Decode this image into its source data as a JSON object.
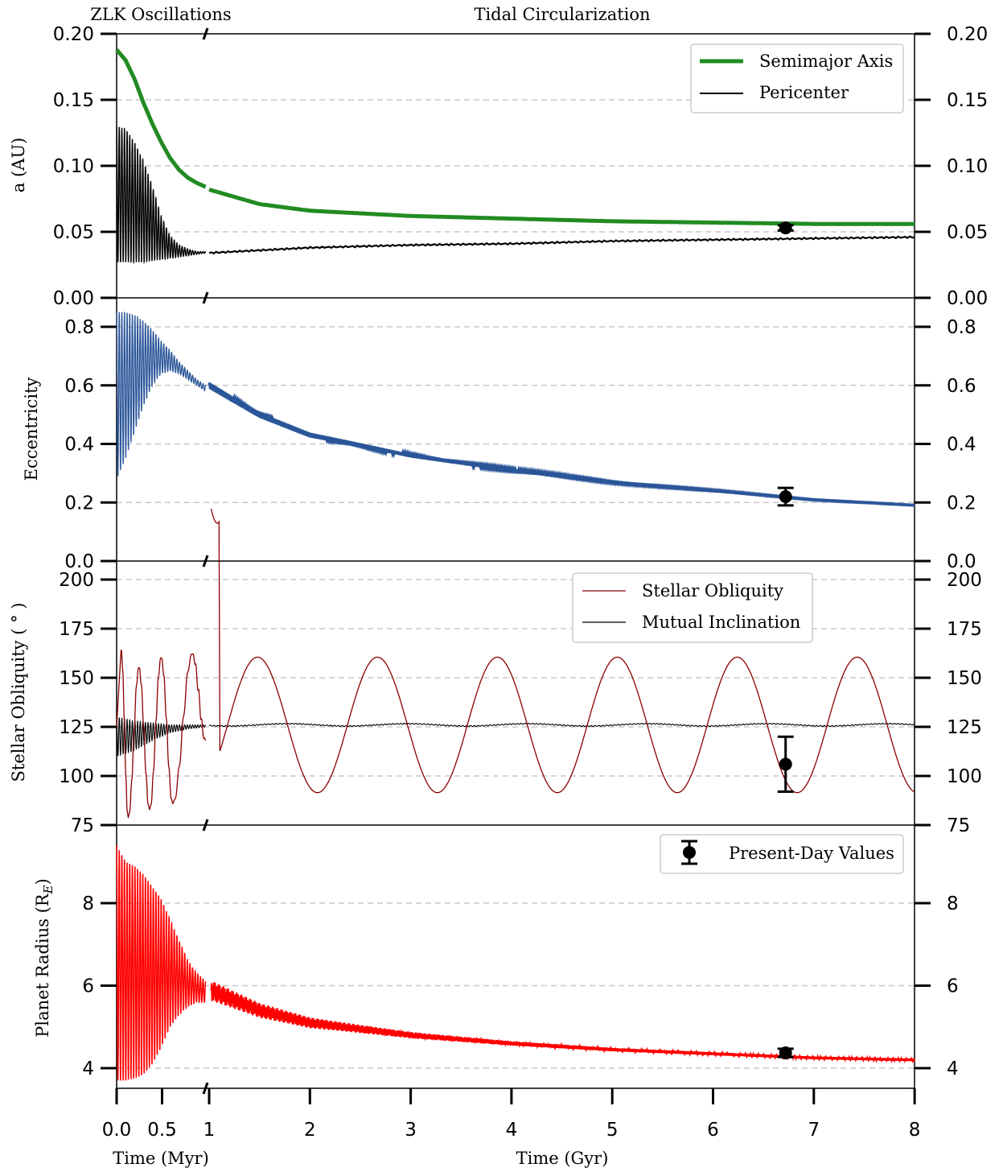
{
  "header": {
    "left_label": "ZLK Oscillations",
    "right_label": "Tidal Circularization"
  },
  "x_axis": {
    "left_label": "Time (Myr)",
    "right_label": "Time (Gyr)",
    "left_ticks": [
      "0.0",
      "0.5",
      "1"
    ],
    "right_ticks": [
      "2",
      "3",
      "4",
      "5",
      "6",
      "7",
      "8"
    ]
  },
  "colors": {
    "semimajor": "#228b22",
    "pericenter": "#000000",
    "eccentricity": "#2a5599",
    "obliquity": "#8b0000",
    "inclination": "#000000",
    "radius": "#ff0000",
    "grid": "#c8c8c8"
  },
  "chart_data": [
    {
      "type": "line",
      "panel": "semimajor-axis",
      "ylabel": "a (AU)",
      "ylim": [
        0.0,
        0.2
      ],
      "yticks": [
        "0.00",
        "0.05",
        "0.10",
        "0.15",
        "0.20"
      ],
      "grid": true,
      "legend_position": "top-right",
      "series": [
        {
          "name": "Semimajor Axis",
          "zlk": {
            "x_myr": [
              0.0,
              0.1,
              0.2,
              0.3,
              0.4,
              0.5,
              0.6,
              0.7,
              0.8,
              0.9,
              1.0
            ],
            "y": [
              0.188,
              0.18,
              0.166,
              0.148,
              0.132,
              0.118,
              0.106,
              0.097,
              0.091,
              0.087,
              0.084
            ]
          },
          "tidal": {
            "x_gyr": [
              1.0,
              1.5,
              2.0,
              3.0,
              4.0,
              5.0,
              6.0,
              7.0,
              8.0
            ],
            "y": [
              0.082,
              0.071,
              0.066,
              0.062,
              0.06,
              0.058,
              0.057,
              0.056,
              0.056
            ]
          }
        },
        {
          "name": "Pericenter",
          "zlk": {
            "x_myr": [
              0.0,
              0.1,
              0.2,
              0.3,
              0.4,
              0.5,
              0.6,
              0.7,
              0.8,
              0.9,
              1.0
            ],
            "y_max": [
              0.13,
              0.128,
              0.118,
              0.104,
              0.085,
              0.062,
              0.047,
              0.04,
              0.037,
              0.035,
              0.035
            ],
            "y_min": [
              0.027,
              0.027,
              0.027,
              0.027,
              0.028,
              0.029,
              0.03,
              0.031,
              0.032,
              0.033,
              0.034
            ]
          },
          "tidal": {
            "x_gyr": [
              1.0,
              2.0,
              3.0,
              4.0,
              5.0,
              6.0,
              7.0,
              8.0
            ],
            "y": [
              0.034,
              0.038,
              0.04,
              0.041,
              0.043,
              0.044,
              0.045,
              0.046
            ]
          }
        }
      ],
      "present_day": {
        "x_gyr": 6.72,
        "y": 0.053,
        "err": 0.002
      }
    },
    {
      "type": "line",
      "panel": "eccentricity",
      "ylabel": "Eccentricity",
      "ylim": [
        0.0,
        0.9
      ],
      "yticks": [
        "0.0",
        "0.2",
        "0.4",
        "0.6",
        "0.8"
      ],
      "grid": true,
      "series": [
        {
          "name": "",
          "zlk": {
            "x_myr": [
              0.0,
              0.1,
              0.2,
              0.3,
              0.4,
              0.5,
              0.6,
              0.7,
              0.8,
              0.9,
              1.0
            ],
            "y_max": [
              0.85,
              0.85,
              0.84,
              0.82,
              0.79,
              0.75,
              0.72,
              0.68,
              0.65,
              0.62,
              0.6
            ],
            "y_min": [
              0.28,
              0.35,
              0.44,
              0.53,
              0.6,
              0.64,
              0.65,
              0.64,
              0.62,
              0.6,
              0.58
            ]
          },
          "tidal": {
            "x_gyr": [
              1.0,
              1.5,
              2.0,
              3.0,
              4.0,
              5.0,
              6.0,
              7.0,
              8.0
            ],
            "y": [
              0.6,
              0.5,
              0.43,
              0.36,
              0.31,
              0.27,
              0.24,
              0.21,
              0.19
            ]
          }
        }
      ],
      "present_day": {
        "x_gyr": 6.72,
        "y": 0.22,
        "err": 0.03
      }
    },
    {
      "type": "line",
      "panel": "stellar-obliquity",
      "ylabel": "Stellar Obliquity ( ° )",
      "ylim": [
        75,
        205
      ],
      "yticks": [
        "75",
        "100",
        "125",
        "150",
        "175",
        "200"
      ],
      "grid": true,
      "legend_position": "top-right",
      "series": [
        {
          "name": "Stellar Obliquity",
          "zlk_peaks": [
            {
              "x_myr": 0.05,
              "y": 164
            },
            {
              "x_myr": 0.13,
              "y": 79
            },
            {
              "x_myr": 0.25,
              "y": 155
            },
            {
              "x_myr": 0.37,
              "y": 83
            },
            {
              "x_myr": 0.5,
              "y": 160
            },
            {
              "x_myr": 0.63,
              "y": 86
            },
            {
              "x_myr": 0.85,
              "y": 162
            },
            {
              "x_myr": 1.0,
              "y": 118
            }
          ],
          "tidal": {
            "x_gyr_start": 1.0,
            "period_gyr": 1.19,
            "mean": 126,
            "amplitude": 34.5,
            "first_peak_gyr": 1.48
          },
          "tidal_first_min": {
            "x_gyr": 1.1,
            "y": 94
          }
        },
        {
          "name": "Mutual Inclination",
          "zlk": {
            "x_myr": [
              0.0,
              0.2,
              0.4,
              0.6,
              0.8,
              1.0
            ],
            "y_max": [
              130,
              128,
              127,
              126,
              126,
              126
            ],
            "y_min": [
              110,
              113,
              118,
              122,
              124,
              125
            ]
          },
          "tidal": {
            "x_gyr": [
              1.0,
              8.0
            ],
            "y": [
              126,
              126
            ]
          }
        }
      ],
      "present_day": {
        "x_gyr": 6.72,
        "y": 106,
        "err": 14
      }
    },
    {
      "type": "line",
      "panel": "planet-radius",
      "ylabel": "Planet Radius (R_E)",
      "ylim": [
        3.5,
        9.5
      ],
      "yticks": [
        "4",
        "6",
        "8"
      ],
      "grid": true,
      "legend_position": "top-right",
      "series": [
        {
          "name": "",
          "zlk": {
            "x_myr": [
              0.0,
              0.1,
              0.2,
              0.3,
              0.4,
              0.5,
              0.6,
              0.7,
              0.8,
              0.9,
              1.0
            ],
            "y_max": [
              9.4,
              9.0,
              8.9,
              8.7,
              8.4,
              8.1,
              7.6,
              7.1,
              6.6,
              6.3,
              6.1
            ],
            "y_min": [
              3.7,
              3.7,
              3.75,
              3.85,
              4.1,
              4.5,
              5.0,
              5.3,
              5.5,
              5.6,
              5.6
            ]
          },
          "tidal": {
            "x_gyr": [
              1.0,
              1.5,
              2.0,
              3.0,
              4.0,
              5.0,
              6.0,
              7.0,
              8.0
            ],
            "y": [
              5.9,
              5.4,
              5.1,
              4.8,
              4.6,
              4.45,
              4.35,
              4.25,
              4.2
            ]
          }
        }
      ],
      "legend_entries": [
        "Present-Day Values"
      ],
      "present_day": {
        "x_gyr": 6.72,
        "y": 4.37,
        "err": 0.1
      }
    }
  ],
  "legends": {
    "a": [
      "Semimajor Axis",
      "Pericenter"
    ],
    "obliquity": [
      "Stellar Obliquity",
      "Mutual Inclination"
    ],
    "radius": [
      "Present-Day Values"
    ]
  }
}
